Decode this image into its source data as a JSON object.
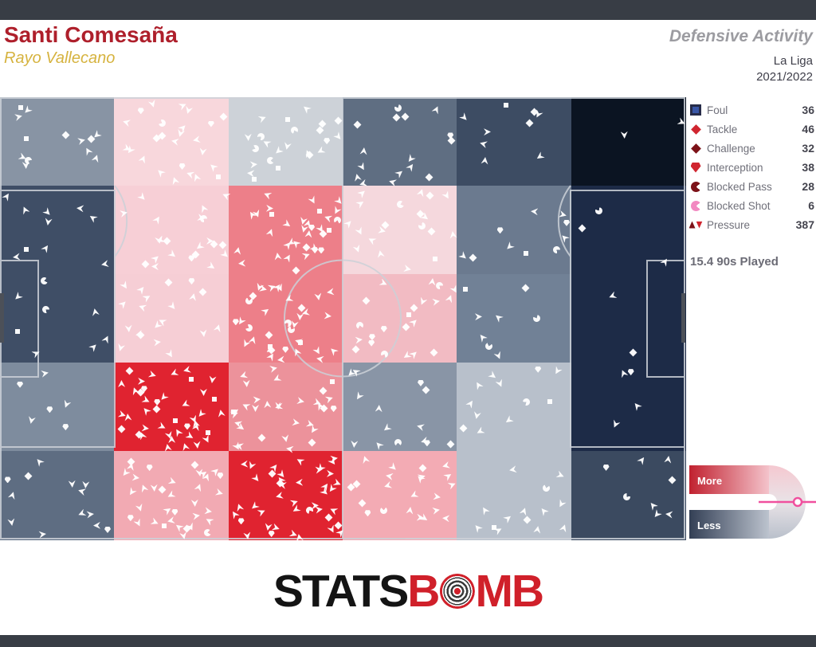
{
  "header": {
    "player": "Santi Comesaña",
    "team": "Rayo Vallecano",
    "report": "Defensive Activity",
    "competition": "La Liga",
    "season": "2021/2022",
    "player_color": "#ae1f2b",
    "team_color": "#d6b33f"
  },
  "legend": {
    "items": [
      {
        "label": "Foul",
        "count": 36,
        "icon": "foul-icon",
        "shape": "square",
        "fill": "#3a57a7",
        "stroke": "#272c49"
      },
      {
        "label": "Tackle",
        "count": 46,
        "icon": "tackle-icon",
        "shape": "diamond",
        "fill": "#d0252f"
      },
      {
        "label": "Challenge",
        "count": 32,
        "icon": "challenge-icon",
        "shape": "diamond",
        "fill": "#7c1218"
      },
      {
        "label": "Interception",
        "count": 38,
        "icon": "interception-icon",
        "shape": "pentagon",
        "fill": "#d0252f"
      },
      {
        "label": "Blocked Pass",
        "count": 28,
        "icon": "blocked-pass-icon",
        "shape": "pacman",
        "fill": "#7c1218"
      },
      {
        "label": "Blocked Shot",
        "count": 6,
        "icon": "blocked-shot-icon",
        "shape": "pacman",
        "fill": "#f289c1"
      },
      {
        "label": "Pressure",
        "count": 387,
        "icon": "pressure-icon",
        "shape": "pressure",
        "fill": "#d0252f",
        "fill2": "#7c1218"
      }
    ],
    "minutes": "15.4 90s Played"
  },
  "scale": {
    "more": "More",
    "less": "Less",
    "red_from": "#c1212f",
    "red_to": "#f4c3cb",
    "navy_from": "#333f55",
    "navy_to": "#bcc3ce",
    "curve_top": "#f5c8d0",
    "curve_mid": "#e9e3e7",
    "curve_bottom": "#b9c0cb",
    "marker_color": "#f0509e"
  },
  "logo": {
    "stats": "STATS",
    "b": "B",
    "mb": "MB",
    "red": "#d0202a"
  },
  "chart_data": {
    "type": "heatmap",
    "title": "Defensive Activity",
    "player": "Santi Comesaña",
    "team": "Rayo Vallecano",
    "competition": "La Liga",
    "season": "2021/2022",
    "nineties_played": 15.4,
    "event_counts": {
      "Foul": 36,
      "Tackle": 46,
      "Challenge": 32,
      "Interception": 38,
      "Blocked Pass": 28,
      "Blocked Shot": 6,
      "Pressure": 387
    },
    "legend_position": "right",
    "colorbar": {
      "more": "More",
      "less": "Less"
    },
    "grid": {
      "cols": 6,
      "rows": 5,
      "cell_colors": [
        [
          "#8894a4",
          "#f8d7dc",
          "#cdd2d8",
          "#5f6e82",
          "#3d4c63",
          "#0b1422"
        ],
        [
          "#3f4e66",
          "#f7cfd6",
          "#ed7f89",
          "#f5d8dd",
          "#6b7a8f",
          "#1d2b47"
        ],
        [
          "#3f4e66",
          "#f6ced5",
          "#ed7f89",
          "#f2bbc3",
          "#718196",
          "#1d2b47"
        ],
        [
          "#7e8c9e",
          "#e02330",
          "#ec929b",
          "#8995a6",
          "#b8c0cb",
          "#1d2b47"
        ],
        [
          "#5e6d82",
          "#f2aab3",
          "#e02330",
          "#f3abb4",
          "#b8c0cb",
          "#3b4a60"
        ]
      ],
      "cell_marker_counts": [
        [
          13,
          25,
          23,
          16,
          9,
          2
        ],
        [
          10,
          22,
          34,
          20,
          10,
          3
        ],
        [
          8,
          20,
          36,
          22,
          8,
          2
        ],
        [
          6,
          42,
          32,
          14,
          12,
          4
        ],
        [
          13,
          36,
          42,
          22,
          14,
          8
        ]
      ]
    },
    "marker_mix": {
      "pressure": 0.68,
      "tackle": 0.081,
      "foul": 0.063,
      "challenge": 0.056,
      "interception": 0.066,
      "blocked_pass": 0.049,
      "blocked_shot": 0.011
    },
    "seed": 20212022
  }
}
